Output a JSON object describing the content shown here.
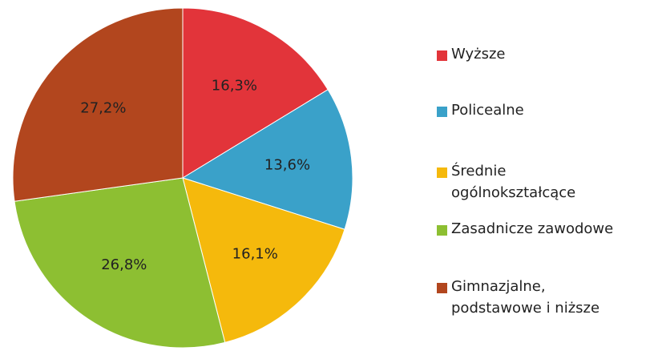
{
  "chart_data": {
    "type": "pie",
    "categories": [
      "Wyższe",
      "Policealne",
      "Średnie\nogólnokształcące",
      "Zasadnicze zawodowe",
      "Gimnazjalne,\npodstawowe i niższe"
    ],
    "values": [
      16.3,
      13.6,
      16.1,
      26.8,
      27.2
    ],
    "value_labels": [
      "16,3%",
      "13,6%",
      "16,1%",
      "26,8%",
      "27,2%"
    ],
    "colors": [
      "#e2343a",
      "#3aa1c9",
      "#f5b90c",
      "#8dbf32",
      "#b2461e"
    ],
    "legend": "right"
  }
}
